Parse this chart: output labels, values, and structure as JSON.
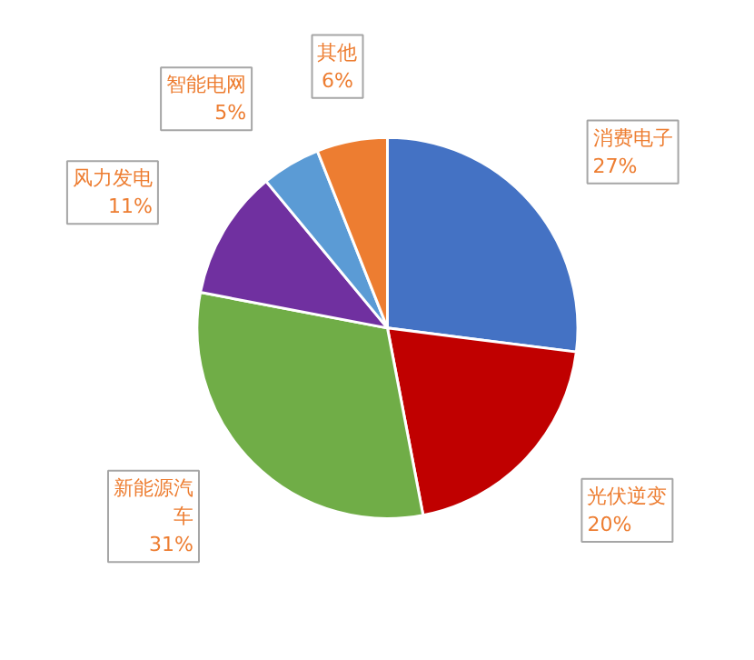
{
  "chart_data": {
    "type": "pie",
    "categories": [
      "消费电子",
      "光伏逆变",
      "新能源汽车",
      "风力发电",
      "智能电网",
      "其他"
    ],
    "values": [
      27,
      20,
      31,
      11,
      5,
      6
    ],
    "colors": [
      "#4472c4",
      "#c00000",
      "#70ad47",
      "#7030a0",
      "#5b9bd5",
      "#ed7d31"
    ],
    "data_labels": true,
    "value_labels": [
      "27%",
      "20%",
      "31%",
      "11%",
      "5%",
      "6%"
    ]
  }
}
